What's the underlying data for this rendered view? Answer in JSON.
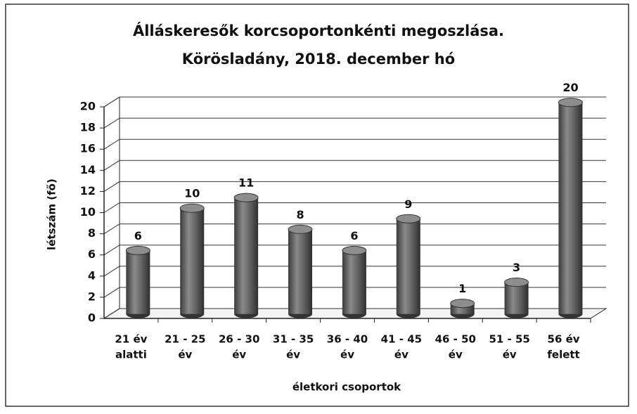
{
  "chart_data": {
    "type": "bar3d",
    "title": [
      "Álláskeresők korcsoportonkénti megoszlása.",
      "Körösladány, 2018. december hó"
    ],
    "x_label": "életkori csoportok",
    "y_label": "létszám (fő)",
    "categories": [
      [
        "21 év",
        "alatti"
      ],
      [
        "21 - 25",
        "év"
      ],
      [
        "26 - 30",
        "év"
      ],
      [
        "31 - 35",
        "év"
      ],
      [
        "36 - 40",
        "év"
      ],
      [
        "41 - 45",
        "év"
      ],
      [
        "46 - 50",
        "év"
      ],
      [
        "51 - 55",
        "év"
      ],
      [
        "56 év",
        "felett"
      ]
    ],
    "values": [
      6,
      10,
      11,
      8,
      6,
      9,
      1,
      3,
      20
    ],
    "color": "#5a5a5a",
    "ylim": [
      0,
      20
    ],
    "yticks": [
      0,
      2,
      4,
      6,
      8,
      10,
      12,
      14,
      16,
      18,
      20
    ],
    "grid": true
  }
}
